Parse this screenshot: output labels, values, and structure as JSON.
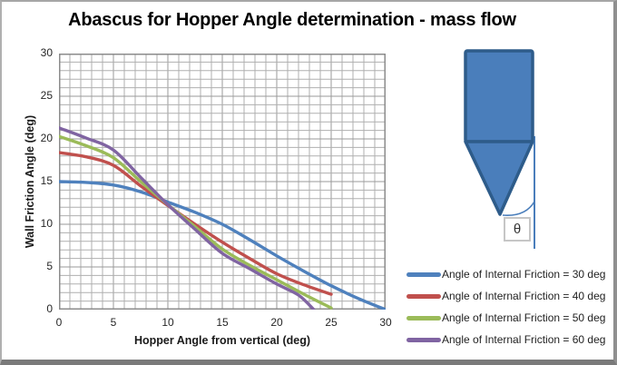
{
  "chart_data": {
    "type": "line",
    "title": "Abascus for Hopper Angle determination - mass flow",
    "xlabel": "Hopper Angle from vertical (deg)",
    "ylabel": "Wall Friction Angle (deg)",
    "xlim": [
      0,
      30
    ],
    "ylim": [
      0,
      30
    ],
    "x_ticks": [
      0,
      5,
      10,
      15,
      20,
      25,
      30
    ],
    "y_ticks": [
      0,
      5,
      10,
      15,
      20,
      25,
      30
    ],
    "grid": {
      "visible": true,
      "minor_step": 1,
      "major_step": 5
    },
    "legend_position": "right",
    "series": [
      {
        "name": "Angle of Internal Friction = 30 deg",
        "color": "#4F81BD",
        "points": [
          [
            0,
            15.0
          ],
          [
            2.5,
            14.9
          ],
          [
            5,
            14.6
          ],
          [
            7.5,
            13.8
          ],
          [
            10,
            12.6
          ],
          [
            12.5,
            11.4
          ],
          [
            15,
            10.0
          ],
          [
            17.5,
            8.2
          ],
          [
            20,
            6.3
          ],
          [
            22.5,
            4.5
          ],
          [
            25,
            2.8
          ],
          [
            27.5,
            1.3
          ],
          [
            30,
            0
          ]
        ]
      },
      {
        "name": "Angle of Internal Friction = 40 deg",
        "color": "#C0504D",
        "points": [
          [
            0,
            18.4
          ],
          [
            2.5,
            17.9
          ],
          [
            5,
            16.9
          ],
          [
            7.5,
            14.5
          ],
          [
            10,
            12.2
          ],
          [
            12.5,
            10.0
          ],
          [
            15,
            7.9
          ],
          [
            17.5,
            6.0
          ],
          [
            20,
            4.2
          ],
          [
            22.5,
            2.9
          ],
          [
            25,
            1.8
          ]
        ]
      },
      {
        "name": "Angle of Internal Friction = 50 deg",
        "color": "#9BBB59",
        "points": [
          [
            0,
            20.3
          ],
          [
            2.5,
            19.2
          ],
          [
            5,
            17.8
          ],
          [
            7.5,
            15.0
          ],
          [
            10,
            12.3
          ],
          [
            12.5,
            9.7
          ],
          [
            15,
            7.1
          ],
          [
            17.5,
            5.2
          ],
          [
            20,
            3.5
          ],
          [
            22.5,
            1.8
          ],
          [
            25,
            0.2
          ]
        ]
      },
      {
        "name": "Angle of Internal Friction = 60 deg",
        "color": "#8064A2",
        "points": [
          [
            0,
            21.3
          ],
          [
            2.5,
            20.1
          ],
          [
            5,
            18.7
          ],
          [
            7.5,
            15.5
          ],
          [
            10,
            12.3
          ],
          [
            12.5,
            9.4
          ],
          [
            15,
            6.6
          ],
          [
            17.5,
            4.8
          ],
          [
            20,
            3.0
          ],
          [
            22,
            1.7
          ],
          [
            23.4,
            0
          ]
        ]
      }
    ]
  },
  "hopper_diagram": {
    "theta_label": "θ",
    "fill_color": "#4A7EBB",
    "border_color": "#2E5C8A"
  },
  "style": {
    "grid_minor_color": "#AFAFAF",
    "grid_major_color": "#9A9A9A",
    "plot_border_color": "#8C8C8C"
  }
}
